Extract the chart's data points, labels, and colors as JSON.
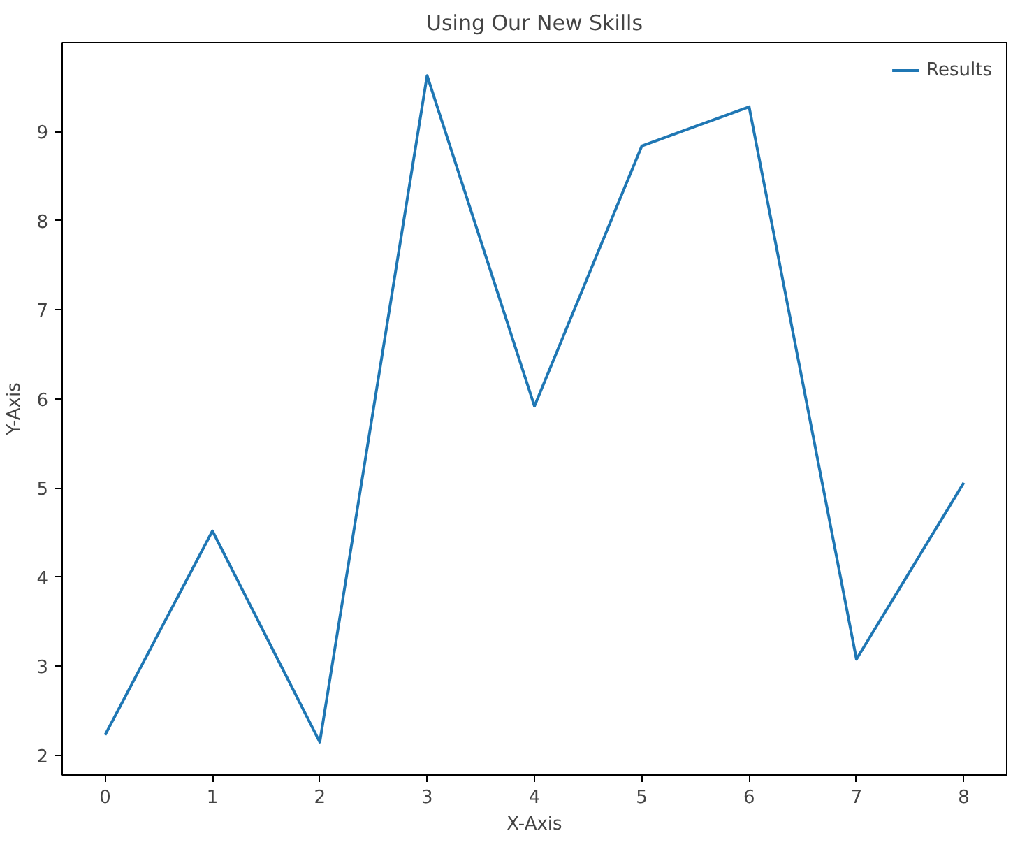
{
  "chart_data": {
    "type": "line",
    "title": "Using Our New Skills",
    "xlabel": "X-Axis",
    "ylabel": "Y-Axis",
    "x": [
      0,
      1,
      2,
      3,
      4,
      5,
      6,
      7,
      8
    ],
    "series": [
      {
        "name": "Results",
        "color": "#1f77b4",
        "values": [
          2.23,
          4.52,
          2.15,
          9.63,
          5.92,
          8.84,
          9.28,
          3.08,
          5.06
        ]
      }
    ],
    "xlim": [
      -0.4,
      8.4
    ],
    "ylim": [
      1.78,
      10.0
    ],
    "xticks": [
      0,
      1,
      2,
      3,
      4,
      5,
      6,
      7,
      8
    ],
    "yticks": [
      2,
      3,
      4,
      5,
      6,
      7,
      8,
      9
    ],
    "legend": "top right",
    "grid": false
  }
}
